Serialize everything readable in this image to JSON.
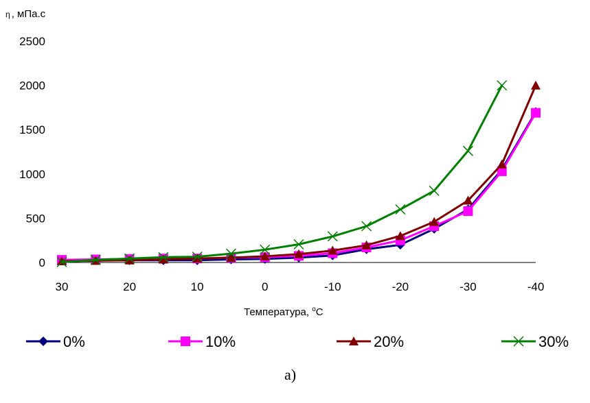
{
  "chart_data": {
    "type": "line",
    "ylabel_symbol": "η",
    "ylabel_unit": ", мПа.с",
    "xlabel_text": "Температура, ",
    "xlabel_sup": "o",
    "xlabel_unit": "C",
    "x_ticks": [
      "30",
      "20",
      "10",
      "0",
      "-10",
      "-20",
      "-30",
      "-40"
    ],
    "y_ticks": [
      "0",
      "500",
      "1000",
      "1500",
      "2000",
      "2500"
    ],
    "xlim": [
      30,
      -40
    ],
    "ylim": [
      0,
      2500
    ],
    "caption": "а)",
    "series": [
      {
        "name": "0%",
        "color": "#000080",
        "marker": "diamond",
        "x": [
          30,
          25,
          20,
          15,
          10,
          5,
          0,
          -5,
          -10,
          -15,
          -20,
          -25,
          -30,
          -35,
          -40
        ],
        "y": [
          25,
          25,
          25,
          25,
          25,
          35,
          40,
          55,
          80,
          150,
          200,
          380,
          600,
          1050,
          1700
        ]
      },
      {
        "name": "10%",
        "color": "#ff00ff",
        "marker": "square",
        "x": [
          30,
          25,
          20,
          15,
          10,
          5,
          0,
          -5,
          -10,
          -15,
          -20,
          -25,
          -30,
          -35,
          -40
        ],
        "y": [
          30,
          35,
          40,
          45,
          45,
          55,
          60,
          75,
          105,
          170,
          250,
          410,
          580,
          1030,
          1690
        ]
      },
      {
        "name": "20%",
        "color": "#800000",
        "marker": "triangle",
        "x": [
          30,
          25,
          20,
          15,
          10,
          5,
          0,
          -5,
          -10,
          -15,
          -20,
          -25,
          -30,
          -35,
          -40
        ],
        "y": [
          15,
          20,
          25,
          35,
          45,
          55,
          70,
          95,
          135,
          195,
          300,
          460,
          700,
          1110,
          2000
        ]
      },
      {
        "name": "30%",
        "color": "#008000",
        "marker": "x",
        "x": [
          30,
          25,
          20,
          15,
          10,
          5,
          0,
          -5,
          -10,
          -15,
          -20,
          -25,
          -30,
          -35
        ],
        "y": [
          5,
          30,
          45,
          60,
          65,
          100,
          145,
          205,
          295,
          410,
          600,
          810,
          1260,
          2000
        ]
      }
    ]
  }
}
